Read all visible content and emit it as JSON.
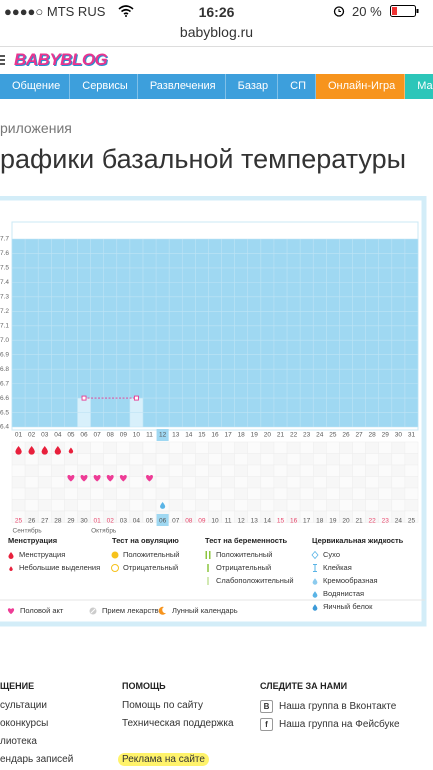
{
  "status_bar": {
    "carrier": "●●●●○ MTS RUS",
    "time": "16:26",
    "battery": "20 %"
  },
  "url": "babyblog.ru",
  "logo": "BABYBLOG",
  "nav": [
    {
      "label": "Общение",
      "color": null
    },
    {
      "label": "Сервисы",
      "color": null
    },
    {
      "label": "Развлечения",
      "color": null
    },
    {
      "label": "Базар",
      "color": null
    },
    {
      "label": "СП",
      "color": null
    },
    {
      "label": "Онлайн-Игра",
      "color": "#f7941d"
    },
    {
      "label": "Мамы-эксперт",
      "color": "#2cc6b9"
    }
  ],
  "breadcrumb": "риложения",
  "title": "рафики базальной температуры",
  "chart": {
    "y_ticks": [
      7.7,
      7.6,
      7.5,
      7.4,
      7.3,
      7.2,
      7.1,
      {
        "value": 7,
        "label": "7.0"
      },
      6.9,
      6.8,
      6.7,
      6.6,
      6.5,
      6.4
    ],
    "cycle_days": [
      "01",
      "02",
      "03",
      "04",
      "05",
      "06",
      "07",
      "08",
      "09",
      "10",
      "11",
      "12",
      "13",
      "14",
      "15",
      "16",
      "17",
      "18",
      "19",
      "20",
      "21",
      "22",
      "23",
      "24",
      "25",
      "26",
      "27",
      "28",
      "29",
      "30",
      "31"
    ],
    "current_day": "12",
    "dates": [
      {
        "text": "25",
        "red": true,
        "month": "Сентябрь"
      },
      {
        "text": "26",
        "red": false
      },
      {
        "text": "27",
        "red": false
      },
      {
        "text": "28",
        "red": false
      },
      {
        "text": "29",
        "red": false
      },
      {
        "text": "30",
        "red": false
      },
      {
        "text": "01",
        "red": true,
        "month": "Октябрь"
      },
      {
        "text": "02",
        "red": true
      },
      {
        "text": "03",
        "red": false
      },
      {
        "text": "04",
        "red": false
      },
      {
        "text": "05",
        "red": false
      },
      {
        "text": "06",
        "red": false
      },
      {
        "text": "07",
        "red": false
      },
      {
        "text": "08",
        "red": true
      },
      {
        "text": "09",
        "red": true
      },
      {
        "text": "10",
        "red": false
      },
      {
        "text": "11",
        "red": false
      },
      {
        "text": "12",
        "red": false
      },
      {
        "text": "13",
        "red": false
      },
      {
        "text": "14",
        "red": false
      },
      {
        "text": "15",
        "red": true
      },
      {
        "text": "16",
        "red": true
      },
      {
        "text": "17",
        "red": false
      },
      {
        "text": "18",
        "red": false
      },
      {
        "text": "19",
        "red": false
      },
      {
        "text": "20",
        "red": false
      },
      {
        "text": "21",
        "red": false
      },
      {
        "text": "22",
        "red": true
      },
      {
        "text": "23",
        "red": true
      },
      {
        "text": "24",
        "red": false
      },
      {
        "text": "25",
        "red": false
      }
    ],
    "current_date": "06",
    "temperatures": [
      {
        "day": "06",
        "value": 6.6
      },
      {
        "day": "10",
        "value": 6.6
      }
    ],
    "menstruation": [
      {
        "day": "01",
        "kind": "Менструация"
      },
      {
        "day": "02",
        "kind": "Менструация"
      },
      {
        "day": "03",
        "kind": "Менструация"
      },
      {
        "day": "04",
        "kind": "Менструация"
      },
      {
        "day": "05",
        "kind": "Небольшие выделения"
      }
    ],
    "intercourse": [
      "05",
      "06",
      "07",
      "08",
      "09",
      "11"
    ],
    "cervical": [
      {
        "day": "12",
        "kind": "Водянистая"
      }
    ]
  },
  "legend": [
    {
      "title": "Менструация",
      "items": [
        "Менструация",
        "Небольшие выделения"
      ]
    },
    {
      "title": "Тест на овуляцию",
      "items": [
        "Положительный",
        "Отрицательный"
      ]
    },
    {
      "title": "Тест на беременность",
      "items": [
        "Положительный",
        "Отрицательный",
        "Слабоположительный"
      ]
    },
    {
      "title": "Цервикальная жидкость",
      "items": [
        "Сухо",
        "Клейкая",
        "Кремообразная",
        "Водянистая",
        "Яичный белок"
      ]
    }
  ],
  "legend_extra": [
    "Половой акт",
    "Прием лекарств",
    "Лунный календарь"
  ],
  "footer": [
    {
      "title": "ЩЕНИЕ",
      "links": [
        {
          "text": "сультации"
        },
        {
          "text": "оконкурсы"
        },
        {
          "text": "лиотека"
        },
        {
          "text": "ендарь записей"
        }
      ]
    },
    {
      "title": "ПОМОЩЬ",
      "links": [
        {
          "text": "Помощь по сайту"
        },
        {
          "text": "Техническая поддержка"
        },
        {
          "text": "Реклама на сайте",
          "highlighted": true
        }
      ]
    },
    {
      "title": "СЛЕДИТЕ ЗА НАМИ",
      "links": [
        {
          "text": "Наша группа в Вконтакте",
          "icon": "B"
        },
        {
          "text": "Наша группа на Фейсбуке",
          "icon": "f"
        }
      ]
    }
  ]
}
